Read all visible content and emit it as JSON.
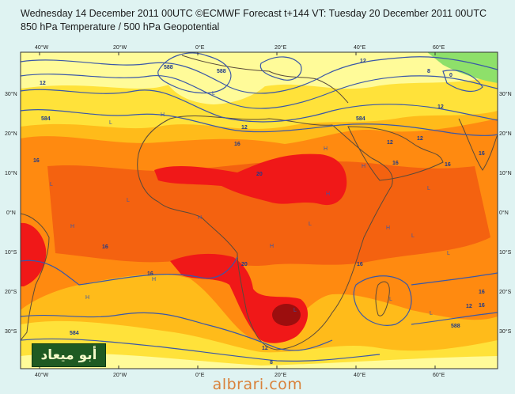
{
  "title": {
    "line1": "Wednesday 14 December 2011 00UTC ©ECMWF Forecast t+144 VT: Tuesday 20 December 2011 00UTC",
    "line2": "850 hPa Temperature / 500 hPa Geopotential"
  },
  "axes": {
    "top_lon": [
      "40°W",
      "20°W",
      "0°E",
      "20°E",
      "40°E",
      "60°E"
    ],
    "bottom_lon": [
      "40°W",
      "20°W",
      "0°E",
      "20°E",
      "40°E",
      "60°E"
    ],
    "left_lat": [
      "30°N",
      "20°N",
      "10°N",
      "0°N",
      "10°S",
      "20°S",
      "30°S"
    ],
    "right_lat": [
      "30°N",
      "20°N",
      "10°N",
      "0°N",
      "10°S",
      "20°S",
      "30°S"
    ]
  },
  "contour_labels": [
    "12",
    "584",
    "588",
    "12",
    "16",
    "12",
    "16",
    "20",
    "12",
    "16",
    "16",
    "16",
    "12",
    "8",
    "584",
    "588",
    "12",
    "16",
    "12",
    "8",
    "0",
    "584",
    "588",
    "16",
    "20",
    "16",
    "16",
    "12",
    "16"
  ],
  "pressure_centers": [
    "H",
    "L",
    "H",
    "L",
    "H",
    "L",
    "L",
    "H",
    "L",
    "H",
    "L",
    "H",
    "L",
    "H",
    "L",
    "H",
    "L",
    "L",
    "H",
    "H",
    "L"
  ],
  "colors": {
    "background": "#dff3f2",
    "cold_green": "#8ee06a",
    "pale_yellow": "#fffb99",
    "yellow": "#ffe23a",
    "light_orange": "#ffbb1a",
    "orange": "#ff8a10",
    "deep_orange": "#f46210",
    "red": "#f01818",
    "dark_red": "#9c0e0e",
    "contour_line": "#3a57a8",
    "coast": "#5a4a3a"
  },
  "watermark": "albrari.com",
  "logo_text": "أبو ميعاد"
}
